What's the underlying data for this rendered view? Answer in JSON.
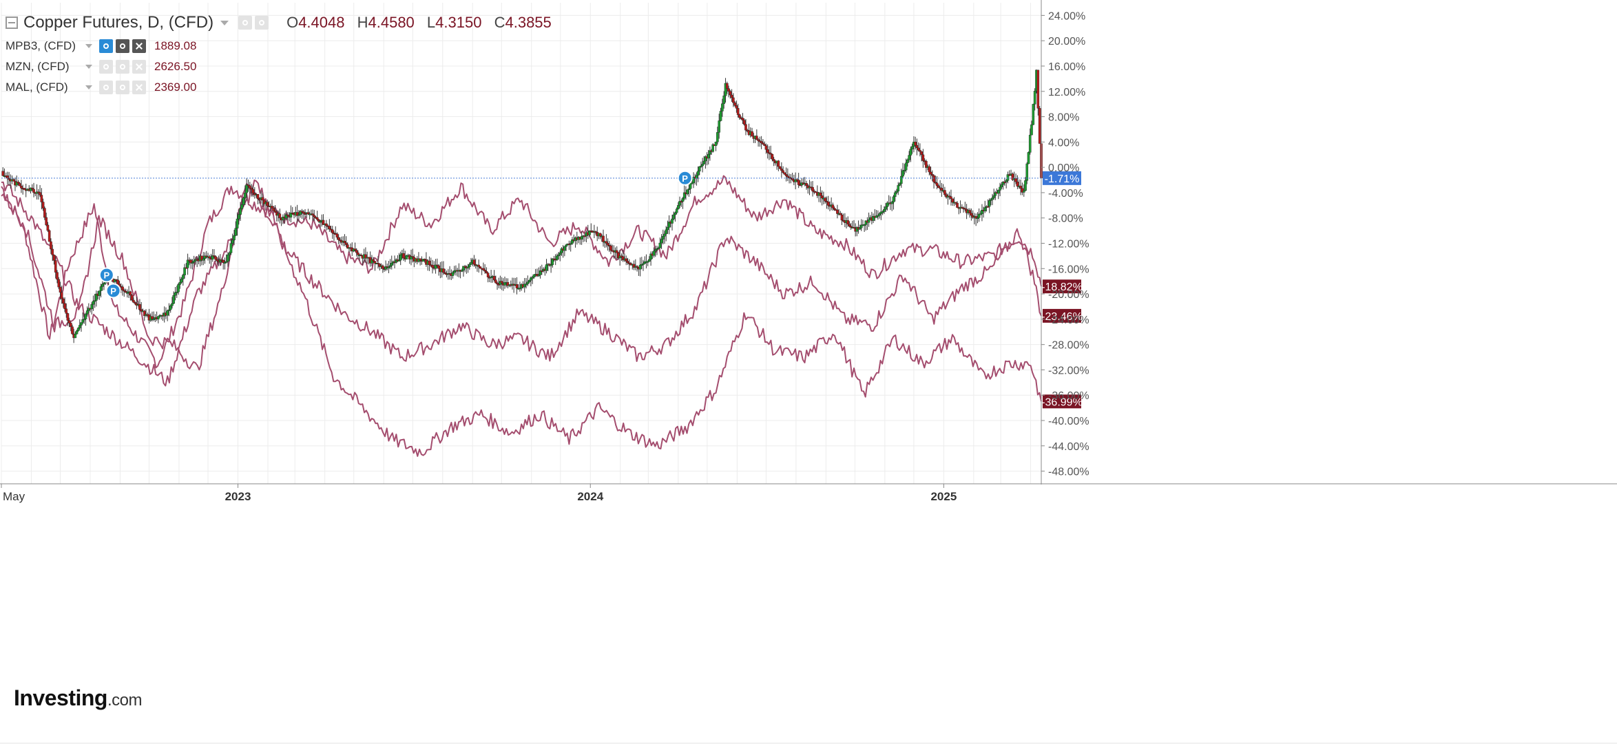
{
  "legend": {
    "main": {
      "title": "Copper Futures, D, (CFD)",
      "o_label": "O",
      "o": "4.4048",
      "h_label": "H",
      "h": "4.4580",
      "l_label": "L",
      "l": "4.3150",
      "c_label": "C",
      "c": "4.3855"
    },
    "overlays": [
      {
        "name": "MPB3, (CFD)",
        "value": "1889.08"
      },
      {
        "name": "MZN, (CFD)",
        "value": "2626.50"
      },
      {
        "name": "MAL, (CFD)",
        "value": "2369.00"
      }
    ]
  },
  "logo": {
    "text": "Investing",
    "suffix": ".com"
  },
  "colors": {
    "up": "#1e9a30",
    "down": "#b31b1b",
    "overlay": "#a44d6e",
    "current_line": "#4b7fd6",
    "badge": "#7a1424",
    "current_badge": "#3c78d8",
    "pin": "#2a8bd6"
  },
  "chart_data": {
    "type": "line",
    "title": "Copper Futures, D, (CFD)",
    "xlabel": "",
    "ylabel": "",
    "y_unit": "% change",
    "ylim": [
      -50,
      26
    ],
    "x_range": [
      "2022-05-01",
      "2025-04-12"
    ],
    "x_ticks": [
      {
        "label": "May",
        "date": "2022-05-01"
      },
      {
        "label": "2023",
        "date": "2023-01-01"
      },
      {
        "label": "2024",
        "date": "2024-01-01"
      },
      {
        "label": "2025",
        "date": "2025-01-01"
      }
    ],
    "y_ticks": [
      "24.00%",
      "20.00%",
      "16.00%",
      "12.00%",
      "8.00%",
      "4.00%",
      "0.00%",
      "-4.00%",
      "-8.00%",
      "-12.00%",
      "-16.00%",
      "-20.00%",
      "-24.00%",
      "-28.00%",
      "-32.00%",
      "-36.00%",
      "-40.00%",
      "-44.00%",
      "-48.00%"
    ],
    "grid": true,
    "pins": [
      {
        "label": "P",
        "date": "2022-08-18",
        "y": -17
      },
      {
        "label": "P",
        "date": "2022-08-25",
        "y": -19.5
      },
      {
        "label": "P",
        "date": "2024-04-08",
        "y": -1.7
      }
    ],
    "current": {
      "series": "Copper Futures",
      "label": "-1.71%",
      "y": -1.71
    },
    "series": [
      {
        "name": "Copper Futures",
        "style": "candle",
        "x": [
          "2022-05-01",
          "2022-05-20",
          "2022-06-10",
          "2022-07-01",
          "2022-07-15",
          "2022-08-01",
          "2022-08-20",
          "2022-09-10",
          "2022-10-01",
          "2022-10-20",
          "2022-11-10",
          "2022-12-01",
          "2022-12-20",
          "2023-01-10",
          "2023-01-25",
          "2023-02-15",
          "2023-03-10",
          "2023-04-01",
          "2023-04-20",
          "2023-05-10",
          "2023-05-31",
          "2023-06-20",
          "2023-07-15",
          "2023-08-10",
          "2023-09-01",
          "2023-09-25",
          "2023-10-20",
          "2023-11-15",
          "2023-12-10",
          "2024-01-05",
          "2024-01-30",
          "2024-02-20",
          "2024-03-10",
          "2024-04-01",
          "2024-04-20",
          "2024-05-10",
          "2024-05-20",
          "2024-06-10",
          "2024-07-01",
          "2024-07-25",
          "2024-08-15",
          "2024-09-05",
          "2024-09-30",
          "2024-10-20",
          "2024-11-10",
          "2024-12-01",
          "2024-12-25",
          "2025-01-15",
          "2025-02-05",
          "2025-02-25",
          "2025-03-10",
          "2025-03-25",
          "2025-04-02",
          "2025-04-07",
          "2025-04-12"
        ],
        "y": [
          -1,
          -3,
          -4,
          -20,
          -27,
          -22,
          -17,
          -20,
          -24,
          -23,
          -15,
          -14,
          -15,
          -3,
          -5,
          -8,
          -7,
          -9,
          -12,
          -14,
          -16,
          -14,
          -15,
          -17,
          -15,
          -18,
          -19,
          -16,
          -12,
          -10,
          -14,
          -16,
          -13,
          -6,
          -1,
          4,
          13,
          6,
          3,
          -2,
          -3,
          -6,
          -10,
          -8,
          -5,
          4,
          -3,
          -6,
          -8,
          -4,
          -1,
          -4,
          7,
          15,
          -1.71
        ]
      },
      {
        "name": "MPB3, (CFD)",
        "style": "line",
        "x": [
          "2022-05-01",
          "2022-05-25",
          "2022-06-20",
          "2022-07-10",
          "2022-08-05",
          "2022-08-25",
          "2022-09-15",
          "2022-10-10",
          "2022-11-05",
          "2022-12-01",
          "2022-12-25",
          "2023-01-20",
          "2023-02-20",
          "2023-03-20",
          "2023-04-20",
          "2023-05-20",
          "2023-06-20",
          "2023-07-20",
          "2023-08-20",
          "2023-09-20",
          "2023-10-20",
          "2023-11-20",
          "2023-12-20",
          "2024-01-20",
          "2024-02-20",
          "2024-03-20",
          "2024-04-20",
          "2024-05-20",
          "2024-06-20",
          "2024-07-20",
          "2024-08-20",
          "2024-09-20",
          "2024-10-20",
          "2024-11-20",
          "2024-12-20",
          "2025-01-20",
          "2025-02-20",
          "2025-03-20",
          "2025-04-05",
          "2025-04-12"
        ],
        "y": [
          -3,
          -10,
          -27,
          -15,
          -6,
          -22,
          -26,
          -31,
          -22,
          -9,
          -3,
          -6,
          -8,
          -9,
          -14,
          -16,
          -6,
          -9,
          -3,
          -10,
          -5,
          -12,
          -9,
          -15,
          -10,
          -14,
          -5,
          -2,
          -8,
          -5,
          -10,
          -12,
          -17,
          -13,
          -13,
          -15,
          -14,
          -11,
          -14,
          -18.82
        ]
      },
      {
        "name": "MZN, (CFD)",
        "style": "line",
        "x": [
          "2022-05-01",
          "2022-06-01",
          "2022-07-01",
          "2022-07-20",
          "2022-08-20",
          "2022-09-20",
          "2022-10-20",
          "2022-11-20",
          "2022-12-20",
          "2023-01-20",
          "2023-02-20",
          "2023-03-20",
          "2023-04-20",
          "2023-05-20",
          "2023-06-20",
          "2023-07-20",
          "2023-08-20",
          "2023-09-20",
          "2023-10-20",
          "2023-11-20",
          "2023-12-20",
          "2024-01-20",
          "2024-02-20",
          "2024-03-20",
          "2024-04-20",
          "2024-05-20",
          "2024-06-20",
          "2024-07-20",
          "2024-08-20",
          "2024-09-20",
          "2024-10-20",
          "2024-11-20",
          "2024-12-20",
          "2025-01-20",
          "2025-02-20",
          "2025-03-20",
          "2025-04-05",
          "2025-04-12"
        ],
        "y": [
          -2,
          -8,
          -16,
          -22,
          -26,
          -30,
          -34,
          -20,
          -13,
          -2,
          -13,
          -18,
          -23,
          -26,
          -30,
          -28,
          -25,
          -28,
          -27,
          -30,
          -23,
          -26,
          -30,
          -28,
          -22,
          -11,
          -15,
          -20,
          -18,
          -24,
          -25,
          -17,
          -24,
          -19,
          -16,
          -10,
          -18,
          -23.46
        ]
      },
      {
        "name": "MAL, (CFD)",
        "style": "line",
        "x": [
          "2022-05-01",
          "2022-05-25",
          "2022-06-25",
          "2022-07-20",
          "2022-08-10",
          "2022-09-05",
          "2022-10-01",
          "2022-10-25",
          "2022-11-20",
          "2022-12-15",
          "2023-01-10",
          "2023-02-10",
          "2023-03-10",
          "2023-04-10",
          "2023-05-10",
          "2023-06-10",
          "2023-07-10",
          "2023-08-10",
          "2023-09-10",
          "2023-10-10",
          "2023-11-10",
          "2023-12-10",
          "2024-01-10",
          "2024-02-10",
          "2024-03-10",
          "2024-04-10",
          "2024-05-10",
          "2024-06-10",
          "2024-07-10",
          "2024-08-10",
          "2024-09-10",
          "2024-10-10",
          "2024-11-10",
          "2024-12-10",
          "2025-01-10",
          "2025-02-10",
          "2025-03-10",
          "2025-04-01",
          "2025-04-12"
        ],
        "y": [
          -4,
          -9,
          -25,
          -23,
          -8,
          -15,
          -27,
          -28,
          -32,
          -20,
          -2,
          -10,
          -20,
          -33,
          -38,
          -43,
          -45,
          -41,
          -39,
          -42,
          -39,
          -43,
          -38,
          -42,
          -44,
          -41,
          -35,
          -23,
          -29,
          -30,
          -26,
          -36,
          -27,
          -31,
          -27,
          -33,
          -31,
          -31,
          -36.99
        ]
      }
    ]
  }
}
